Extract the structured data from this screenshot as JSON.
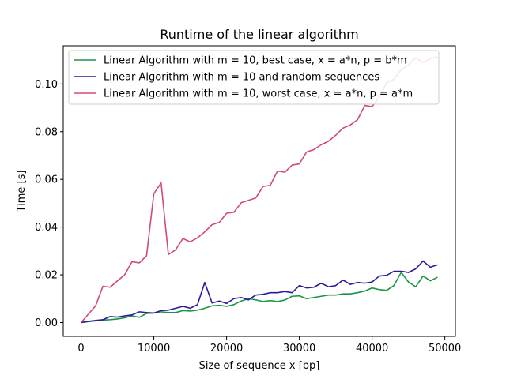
{
  "chart_data": {
    "type": "line",
    "title": "Runtime of the linear algorithm",
    "xlabel": "Size of sequence x [bp]",
    "ylabel": "Time [s]",
    "xlim": [
      -2450,
      51450
    ],
    "ylim": [
      -0.0058,
      0.116
    ],
    "xticks": [
      0,
      10000,
      20000,
      30000,
      40000,
      50000
    ],
    "xtick_labels": [
      "0",
      "10000",
      "20000",
      "30000",
      "40000",
      "50000"
    ],
    "yticks": [
      0.0,
      0.02,
      0.04,
      0.06,
      0.08,
      0.1
    ],
    "ytick_labels": [
      "0.00",
      "0.02",
      "0.04",
      "0.06",
      "0.08",
      "0.10"
    ],
    "grid": false,
    "legend_position": "top-left",
    "x": [
      0,
      1000,
      2000,
      3000,
      4000,
      5000,
      6000,
      7000,
      8000,
      9000,
      10000,
      11000,
      12000,
      13000,
      14000,
      15000,
      16000,
      17000,
      18000,
      19000,
      20000,
      21000,
      22000,
      23000,
      24000,
      25000,
      26000,
      27000,
      28000,
      29000,
      30000,
      31000,
      32000,
      33000,
      34000,
      35000,
      36000,
      37000,
      38000,
      39000,
      40000,
      41000,
      42000,
      43000,
      44000,
      45000,
      46000,
      47000,
      48000,
      49000
    ],
    "series": [
      {
        "name": "Linear Algorithm with m = 10, best case, x = a*n, p = b*m",
        "color": "#1a9641",
        "values": [
          0.0,
          0.0004,
          0.0007,
          0.001,
          0.0012,
          0.0015,
          0.002,
          0.0028,
          0.0022,
          0.0038,
          0.004,
          0.0045,
          0.0042,
          0.0042,
          0.005,
          0.0048,
          0.0052,
          0.006,
          0.007,
          0.0072,
          0.0068,
          0.0075,
          0.009,
          0.01,
          0.0095,
          0.0088,
          0.0092,
          0.0088,
          0.0094,
          0.011,
          0.0112,
          0.01,
          0.0105,
          0.011,
          0.0115,
          0.0115,
          0.012,
          0.012,
          0.0125,
          0.0132,
          0.0145,
          0.0138,
          0.0135,
          0.0155,
          0.021,
          0.017,
          0.015,
          0.0195,
          0.0175,
          0.019
        ]
      },
      {
        "name": "Linear Algorithm with m = 10 and random sequences",
        "color": "#2b1a9c",
        "values": [
          0.0,
          0.0005,
          0.0009,
          0.0012,
          0.0025,
          0.0023,
          0.0028,
          0.0032,
          0.0045,
          0.0042,
          0.004,
          0.005,
          0.0052,
          0.006,
          0.0068,
          0.006,
          0.0075,
          0.0168,
          0.0082,
          0.009,
          0.008,
          0.01,
          0.0105,
          0.0095,
          0.0115,
          0.0118,
          0.0125,
          0.0125,
          0.013,
          0.0125,
          0.0155,
          0.0145,
          0.0148,
          0.0165,
          0.015,
          0.0155,
          0.0178,
          0.016,
          0.0168,
          0.0165,
          0.017,
          0.0195,
          0.0198,
          0.0215,
          0.0215,
          0.021,
          0.0225,
          0.0258,
          0.0232,
          0.0242
        ]
      },
      {
        "name": "Linear Algorithm with m = 10, worst case, x = a*n, p = a*m",
        "color": "#d04a80",
        "values": [
          0.0,
          0.0035,
          0.007,
          0.0152,
          0.0148,
          0.0175,
          0.02,
          0.0255,
          0.025,
          0.028,
          0.054,
          0.0585,
          0.0285,
          0.0305,
          0.0352,
          0.0338,
          0.0355,
          0.038,
          0.041,
          0.042,
          0.0458,
          0.0462,
          0.0502,
          0.0512,
          0.0522,
          0.057,
          0.0575,
          0.0635,
          0.063,
          0.066,
          0.0665,
          0.0715,
          0.0725,
          0.0745,
          0.076,
          0.0785,
          0.0815,
          0.0828,
          0.085,
          0.091,
          0.0905,
          0.0945,
          0.1005,
          0.102,
          0.106,
          0.108,
          0.111,
          0.109,
          0.1105,
          0.1115
        ]
      }
    ]
  }
}
